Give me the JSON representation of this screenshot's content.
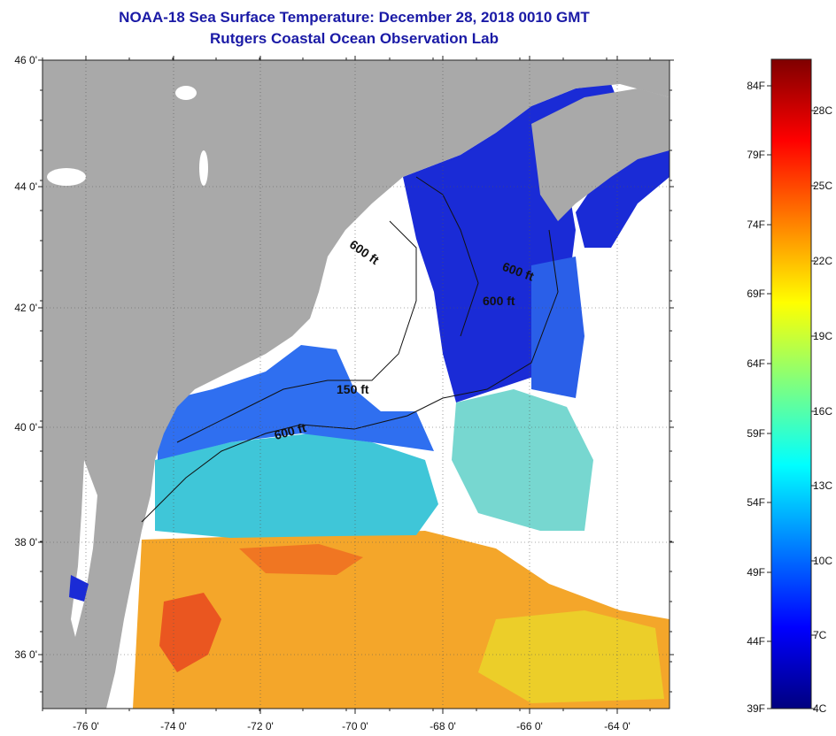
{
  "title": "NOAA-18 Sea Surface Temperature:  December 28, 2018 0010 GMT",
  "subtitle": "Rutgers Coastal Ocean Observation Lab",
  "map": {
    "lat_labels": [
      "46 0'",
      "44 0'",
      "42 0'",
      "40 0'",
      "38 0'",
      "36 0'"
    ],
    "lon_labels": [
      "-76 0'",
      "-74 0'",
      "-72 0'",
      "-70 0'",
      "-68 0'",
      "-66 0'",
      "-64 0'"
    ],
    "isobath_labels": [
      "600 ft",
      "600 ft",
      "600 ft",
      "150 ft",
      "600 ft"
    ],
    "colors": {
      "land": "#a9a9a9",
      "cloud": "#ffffff",
      "cold": "#1a2bd6",
      "cool": "#2f6ff0",
      "mild": "#3fc9d8",
      "warm": "#f5a623",
      "hot": "#e8321e"
    }
  },
  "colorbar": {
    "fahrenheit_labels": [
      "84F",
      "79F",
      "74F",
      "69F",
      "64F",
      "59F",
      "54F",
      "49F",
      "44F",
      "39F"
    ],
    "celsius_labels": [
      "28C",
      "25C",
      "22C",
      "19C",
      "16C",
      "13C",
      "10C",
      "7C",
      "4C"
    ],
    "range_f": [
      39,
      86
    ],
    "gradient": [
      "#00007f",
      "#0000ff",
      "#007fff",
      "#00ffff",
      "#7fff7f",
      "#ffff00",
      "#ff7f00",
      "#ff0000",
      "#7f0000"
    ]
  }
}
